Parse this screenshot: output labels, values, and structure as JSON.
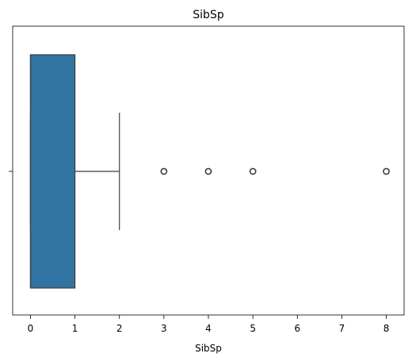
{
  "chart_data": {
    "type": "box",
    "title": "SibSp",
    "xlabel": "SibSp",
    "ylabel": "",
    "orientation": "horizontal",
    "xlim": [
      -0.4,
      8.4
    ],
    "x_ticks": [
      0,
      1,
      2,
      3,
      4,
      5,
      6,
      7,
      8
    ],
    "box": {
      "min_whisker": 0,
      "q1": 0,
      "median": 0,
      "q3": 1,
      "max_whisker": 2,
      "outliers": [
        3,
        4,
        5,
        8
      ]
    },
    "box_color": "#3274a1",
    "grid": false
  }
}
